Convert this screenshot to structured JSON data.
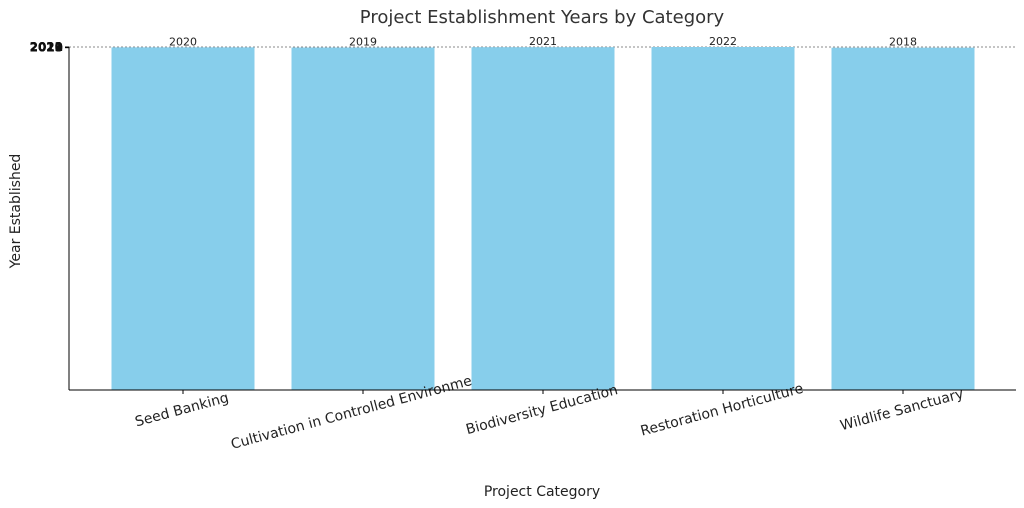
{
  "chart_data": {
    "type": "bar",
    "title": "Project Establishment Years by Category",
    "xlabel": "Project Category",
    "ylabel": "Year Established",
    "categories": [
      "Seed Banking",
      "Cultivation in Controlled Environments",
      "Biodiversity Education",
      "Restoration Horticulture",
      "Wildlife Sanctuary"
    ],
    "values": [
      2020,
      2019,
      2021,
      2022,
      2018
    ],
    "data_labels": [
      "2020",
      "2019",
      "2021",
      "2022",
      "2018"
    ],
    "y_tick_labels": [
      "2018",
      "2019",
      "2020",
      "2021",
      "2022"
    ],
    "ylim": [
      0,
      2022
    ],
    "bar_color": "#87CEEB",
    "reference_line": {
      "value": 2022,
      "style": "dashed",
      "color": "#888888"
    },
    "grid": false,
    "legend": "none"
  }
}
